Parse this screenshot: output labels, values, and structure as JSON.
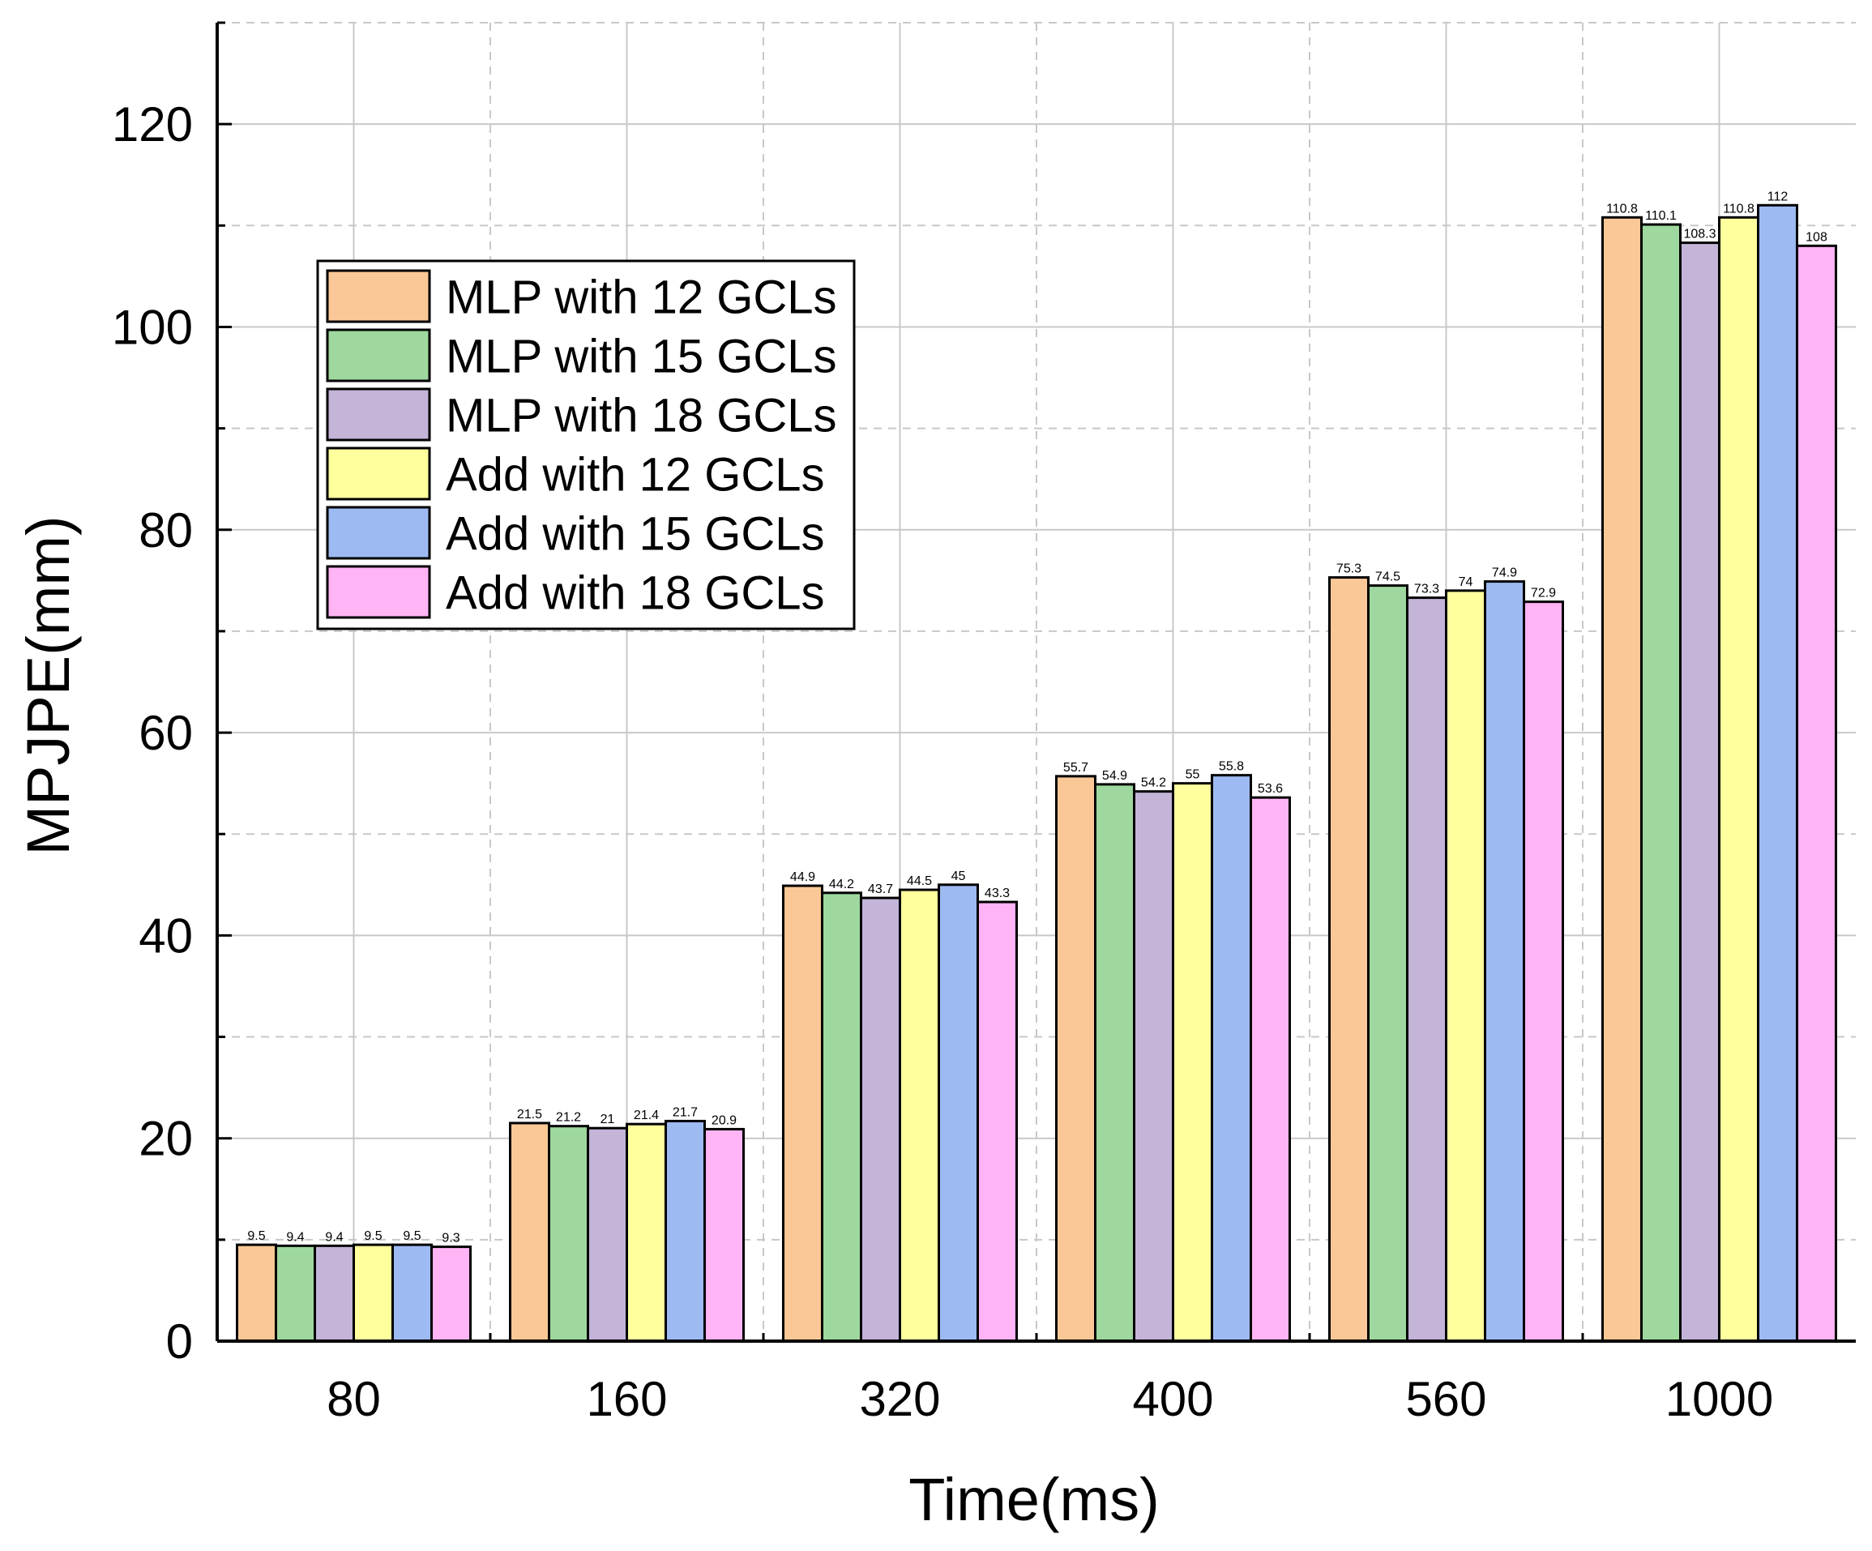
{
  "chart_data": {
    "type": "bar",
    "title": "",
    "xlabel": "Time(ms)",
    "ylabel": "MPJPE(mm)",
    "categories": [
      "80",
      "160",
      "320",
      "400",
      "560",
      "1000"
    ],
    "ylim": [
      0,
      130
    ],
    "yticks": [
      0,
      20,
      40,
      60,
      80,
      100,
      120
    ],
    "grid": true,
    "legend_position": "upper-left",
    "series": [
      {
        "name": "MLP with 12 GCLs",
        "color": "#FAC896",
        "values": [
          9.5,
          21.5,
          44.9,
          55.7,
          75.3,
          110.8
        ],
        "labels": [
          "9.5",
          "21.5",
          "44.9",
          "55.7",
          "75.3",
          "110.8"
        ]
      },
      {
        "name": "MLP with 15 GCLs",
        "color": "#9ED89E",
        "values": [
          9.4,
          21.2,
          44.2,
          54.9,
          74.5,
          110.1
        ],
        "labels": [
          "9.4",
          "21.2",
          "44.2",
          "54.9",
          "74.5",
          "110.1"
        ]
      },
      {
        "name": "MLP with 18 GCLs",
        "color": "#C3B4D8",
        "values": [
          9.4,
          21,
          43.7,
          54.2,
          73.3,
          108.3
        ],
        "labels": [
          "9.4",
          "21",
          "43.7",
          "54.2",
          "73.3",
          "108.3"
        ]
      },
      {
        "name": "Add with 12 GCLs",
        "color": "#FFFF9E",
        "values": [
          9.5,
          21.4,
          44.5,
          55,
          74,
          110.8
        ],
        "labels": [
          "9.5",
          "21.4",
          "44.5",
          "55",
          "74",
          "110.8"
        ]
      },
      {
        "name": "Add with 15 GCLs",
        "color": "#9EBAF2",
        "values": [
          9.5,
          21.7,
          45,
          55.8,
          74.9,
          112
        ],
        "labels": [
          "9.5",
          "21.7",
          "45",
          "55.8",
          "74.9",
          "112"
        ]
      },
      {
        "name": "Add with 18 GCLs",
        "color": "#FFB4F5",
        "values": [
          9.3,
          20.9,
          43.3,
          53.6,
          72.9,
          108
        ],
        "labels": [
          "9.3",
          "20.9",
          "43.3",
          "53.6",
          "72.9",
          "108"
        ]
      }
    ]
  }
}
